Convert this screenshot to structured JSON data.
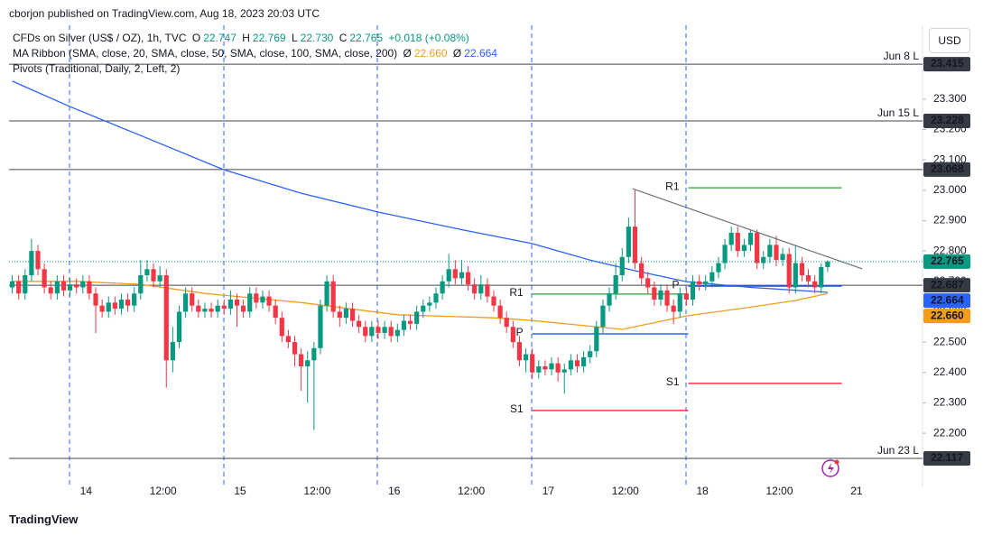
{
  "chart_data": {
    "type": "candlestick",
    "published": "cborjon published on TradingView.com, Aug 18, 2023 20:03 UTC",
    "title": "CFDs on Silver (US$ / OZ), 1h, TVC",
    "legend_keys": [
      "O",
      "H",
      "L",
      "C"
    ],
    "legend_values": [
      "22.747",
      "22.769",
      "22.730",
      "22.765"
    ],
    "change": "+0.018 (+0.08%)",
    "currency": "USD",
    "brand": "TradingView",
    "up_color": "#089981",
    "down_color": "#f23645",
    "open": [
      22.68,
      22.7,
      22.66,
      22.72,
      22.8,
      22.74,
      22.68,
      22.66,
      22.7,
      22.67,
      22.69,
      22.68,
      22.7,
      22.66,
      22.62,
      22.6,
      22.63,
      22.61,
      22.64,
      22.62,
      22.66,
      22.72,
      22.74,
      22.7,
      22.72,
      22.44,
      22.5,
      22.6,
      22.66,
      22.62,
      22.6,
      22.61,
      22.6,
      22.62,
      22.61,
      22.64,
      22.62,
      22.6,
      22.66,
      22.63,
      22.65,
      22.62,
      22.58,
      22.52,
      22.5,
      22.46,
      22.42,
      22.44,
      22.48,
      22.62,
      22.7,
      22.6,
      22.58,
      22.61,
      22.57,
      22.55,
      22.52,
      22.55,
      22.53,
      22.55,
      22.52,
      22.54,
      22.57,
      22.56,
      22.6,
      22.62,
      22.63,
      22.66,
      22.7,
      22.74,
      22.71,
      22.73,
      22.69,
      22.66,
      22.69,
      22.65,
      22.62,
      22.58,
      22.55,
      22.5,
      22.44,
      22.46,
      22.4,
      22.42,
      22.41,
      22.43,
      22.4,
      22.41,
      22.44,
      22.42,
      22.45,
      22.47,
      22.55,
      22.62,
      22.66,
      22.72,
      22.78,
      22.88,
      22.76,
      22.71,
      22.68,
      22.64,
      22.67,
      22.62,
      22.6,
      22.66,
      22.64,
      22.7,
      22.69,
      22.7,
      22.73,
      22.76,
      22.82,
      22.86,
      22.8,
      22.82,
      22.86,
      22.76,
      22.78,
      22.82,
      22.77,
      22.79,
      22.68,
      22.76,
      22.72,
      22.7,
      22.68,
      22.747
    ],
    "high": [
      22.72,
      22.72,
      22.74,
      22.84,
      22.82,
      22.76,
      22.7,
      22.72,
      22.72,
      22.71,
      22.71,
      22.72,
      22.72,
      22.68,
      22.64,
      22.65,
      22.65,
      22.66,
      22.66,
      22.68,
      22.77,
      22.77,
      22.76,
      22.75,
      22.74,
      22.55,
      22.62,
      22.68,
      22.68,
      22.64,
      22.63,
      22.63,
      22.64,
      22.64,
      22.67,
      22.66,
      22.64,
      22.68,
      22.68,
      22.67,
      22.67,
      22.64,
      22.6,
      22.54,
      22.52,
      22.48,
      22.47,
      22.5,
      22.64,
      22.72,
      22.72,
      22.62,
      22.63,
      22.63,
      22.59,
      22.57,
      22.57,
      22.57,
      22.57,
      22.57,
      22.56,
      22.59,
      22.59,
      22.62,
      22.64,
      22.65,
      22.68,
      22.72,
      22.79,
      22.77,
      22.77,
      22.75,
      22.71,
      22.72,
      22.71,
      22.67,
      22.64,
      22.6,
      22.57,
      22.52,
      22.48,
      22.48,
      22.44,
      22.44,
      22.45,
      22.45,
      22.43,
      22.46,
      22.46,
      22.47,
      22.49,
      22.57,
      22.64,
      22.68,
      22.76,
      22.81,
      22.91,
      23.0,
      22.78,
      22.73,
      22.7,
      22.69,
      22.69,
      22.64,
      22.68,
      22.68,
      22.72,
      22.72,
      22.72,
      22.75,
      22.78,
      22.84,
      22.88,
      22.88,
      22.84,
      22.87,
      22.87,
      22.8,
      22.84,
      22.85,
      22.81,
      22.81,
      22.82,
      22.78,
      22.74,
      22.72,
      22.76,
      22.769
    ],
    "low": [
      22.66,
      22.64,
      22.64,
      22.7,
      22.72,
      22.66,
      22.64,
      22.64,
      22.65,
      22.65,
      22.66,
      22.66,
      22.64,
      22.53,
      22.58,
      22.58,
      22.59,
      22.59,
      22.6,
      22.6,
      22.64,
      22.7,
      22.68,
      22.68,
      22.35,
      22.4,
      22.48,
      22.58,
      22.6,
      22.58,
      22.58,
      22.58,
      22.58,
      22.59,
      22.59,
      22.55,
      22.58,
      22.58,
      22.61,
      22.61,
      22.6,
      22.56,
      22.5,
      22.48,
      22.42,
      22.34,
      22.3,
      22.21,
      22.46,
      22.6,
      22.58,
      22.55,
      22.56,
      22.55,
      22.53,
      22.5,
      22.5,
      22.51,
      22.51,
      22.5,
      22.5,
      22.52,
      22.54,
      22.54,
      22.58,
      22.6,
      22.61,
      22.64,
      22.68,
      22.69,
      22.69,
      22.67,
      22.64,
      22.64,
      22.63,
      22.6,
      22.56,
      22.53,
      22.48,
      22.42,
      22.4,
      22.38,
      22.38,
      22.39,
      22.39,
      22.37,
      22.33,
      22.39,
      22.4,
      22.4,
      22.43,
      22.45,
      22.53,
      22.6,
      22.64,
      22.7,
      22.76,
      22.74,
      22.69,
      22.66,
      22.62,
      22.62,
      22.6,
      22.56,
      22.58,
      22.62,
      22.62,
      22.67,
      22.67,
      22.68,
      22.71,
      22.74,
      22.8,
      22.78,
      22.78,
      22.8,
      22.74,
      22.74,
      22.76,
      22.75,
      22.75,
      22.66,
      22.66,
      22.7,
      22.68,
      22.66,
      22.66,
      22.73
    ],
    "close": [
      22.7,
      22.66,
      22.72,
      22.8,
      22.74,
      22.68,
      22.66,
      22.7,
      22.67,
      22.69,
      22.68,
      22.7,
      22.66,
      22.62,
      22.6,
      22.63,
      22.61,
      22.64,
      22.62,
      22.66,
      22.72,
      22.74,
      22.7,
      22.72,
      22.44,
      22.5,
      22.6,
      22.66,
      22.62,
      22.6,
      22.61,
      22.6,
      22.62,
      22.61,
      22.64,
      22.62,
      22.6,
      22.66,
      22.63,
      22.65,
      22.62,
      22.58,
      22.52,
      22.5,
      22.46,
      22.42,
      22.44,
      22.48,
      22.62,
      22.7,
      22.6,
      22.58,
      22.61,
      22.57,
      22.55,
      22.52,
      22.55,
      22.53,
      22.55,
      22.52,
      22.54,
      22.57,
      22.56,
      22.6,
      22.62,
      22.63,
      22.66,
      22.7,
      22.74,
      22.71,
      22.73,
      22.69,
      22.66,
      22.69,
      22.65,
      22.62,
      22.58,
      22.55,
      22.5,
      22.44,
      22.46,
      22.4,
      22.42,
      22.41,
      22.43,
      22.4,
      22.41,
      22.44,
      22.42,
      22.45,
      22.47,
      22.55,
      22.62,
      22.66,
      22.72,
      22.78,
      22.88,
      22.76,
      22.71,
      22.68,
      22.64,
      22.67,
      22.62,
      22.6,
      22.66,
      22.64,
      22.7,
      22.69,
      22.7,
      22.73,
      22.76,
      22.82,
      22.86,
      22.8,
      22.82,
      22.86,
      22.76,
      22.78,
      22.82,
      22.77,
      22.79,
      22.68,
      22.76,
      22.72,
      22.7,
      22.68,
      22.747,
      22.765
    ],
    "xlim": [
      -0.5,
      141.5
    ],
    "xticks": [
      {
        "value": 11.5,
        "label": "14"
      },
      {
        "value": 23.5,
        "label": "12:00"
      },
      {
        "value": 35.5,
        "label": "15"
      },
      {
        "value": 47.5,
        "label": "12:00"
      },
      {
        "value": 59.5,
        "label": "16"
      },
      {
        "value": 71.5,
        "label": "12:00"
      },
      {
        "value": 83.5,
        "label": "17"
      },
      {
        "value": 95.5,
        "label": "12:00"
      },
      {
        "value": 107.5,
        "label": "18"
      },
      {
        "value": 119.5,
        "label": "12:00"
      },
      {
        "value": 131.5,
        "label": "21"
      }
    ],
    "ylim": [
      22.022,
      23.537
    ],
    "yticks": [
      {
        "value": 22.2,
        "label": "22.200"
      },
      {
        "value": 22.3,
        "label": "22.300"
      },
      {
        "value": 22.4,
        "label": "22.400"
      },
      {
        "value": 22.5,
        "label": "22.500"
      },
      {
        "value": 22.6,
        "label": "22.600"
      },
      {
        "value": 22.7,
        "label": "22.700"
      },
      {
        "value": 22.8,
        "label": "22.800"
      },
      {
        "value": 22.9,
        "label": "22.900"
      },
      {
        "value": 23.0,
        "label": "23.000"
      },
      {
        "value": 23.1,
        "label": "23.100"
      },
      {
        "value": 23.2,
        "label": "23.200"
      },
      {
        "value": 23.3,
        "label": "23.300"
      }
    ],
    "grid": false,
    "moving_averages": {
      "title": "MA Ribbon (SMA, close, 20, SMA, close, 50, SMA, close, 100, SMA, close, 200)",
      "symbol": "Ø",
      "series": [
        {
          "color": "#f59c1a",
          "x": [
            0,
            10,
            20,
            30,
            45,
            60,
            75,
            81,
            95,
            105,
            115,
            122,
            127
          ],
          "values": [
            22.7,
            22.7,
            22.69,
            22.66,
            22.63,
            22.59,
            22.58,
            22.571,
            22.542,
            22.586,
            22.615,
            22.637,
            22.66
          ],
          "last_value_label": "22.660"
        },
        {
          "color": "#2962ff",
          "x": [
            0,
            9,
            20,
            33,
            45,
            57,
            70,
            81,
            90,
            97,
            105,
            115,
            127
          ],
          "values": [
            23.359,
            23.275,
            23.18,
            23.067,
            22.99,
            22.928,
            22.87,
            22.824,
            22.77,
            22.735,
            22.699,
            22.68,
            22.664
          ]
        }
      ]
    },
    "pivots": {
      "title": "Pivots (Traditional, Daily, 2, Left, 2)",
      "levels": [
        {
          "name": "R1",
          "color": "#4caf50",
          "segments": [
            {
              "x": [
                81,
                105.3
              ],
              "value": 22.658
            },
            {
              "x": [
                105.3,
                129.2
              ],
              "value": 23.008
            }
          ]
        },
        {
          "name": "P",
          "color": "#2962ff",
          "segments": [
            {
              "x": [
                81,
                105.3
              ],
              "value": 22.527
            },
            {
              "x": [
                105.3,
                129.2
              ],
              "value": 22.684
            }
          ]
        },
        {
          "name": "S1",
          "color": "#f23645",
          "segments": [
            {
              "x": [
                81,
                105.3
              ],
              "value": 22.275
            },
            {
              "x": [
                105.3,
                129.2
              ],
              "value": 22.364
            }
          ]
        }
      ]
    },
    "price_lines": [
      {
        "value": 23.415,
        "label": "Jun 8 L"
      },
      {
        "value": 23.228,
        "label": "Jun 15 L"
      },
      {
        "value": 23.068
      },
      {
        "value": 22.687
      },
      {
        "value": 22.117,
        "label": "Jun 23 L"
      }
    ],
    "trendline": {
      "x": [
        96.6,
        132.4
      ],
      "values": [
        23.005,
        22.741
      ],
      "color": "#707070"
    }
  }
}
